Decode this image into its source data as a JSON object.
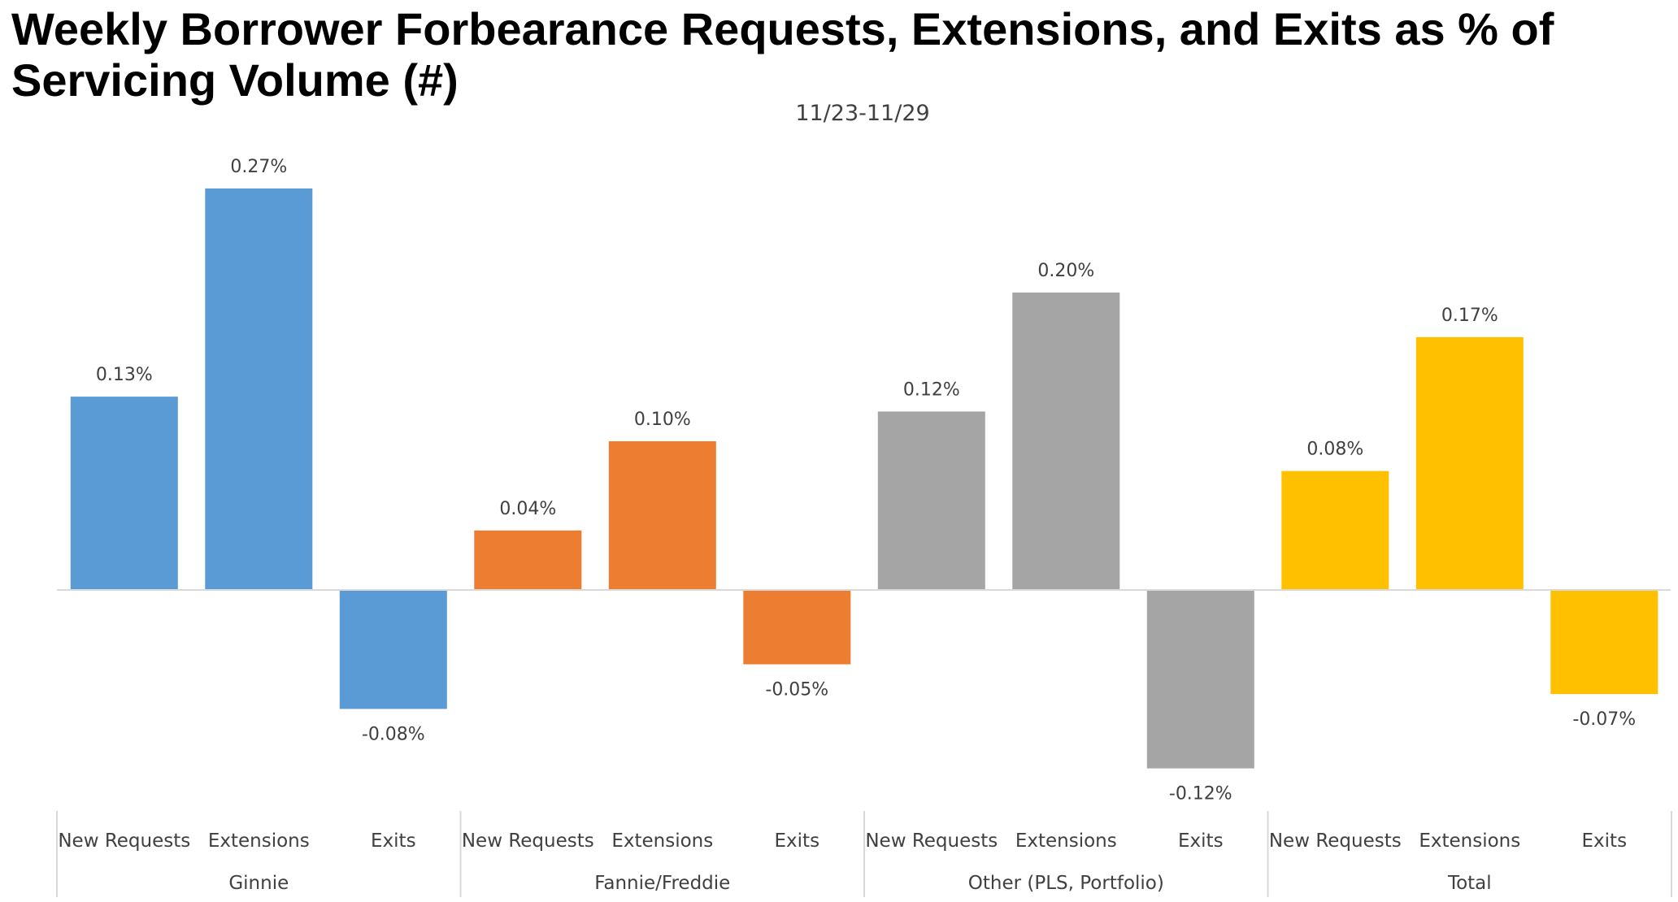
{
  "title": "Weekly Borrower Forbearance Requests, Extensions, and Exits as % of Servicing Volume (#)",
  "chart_data": {
    "type": "bar",
    "subtitle": "11/23-11/29",
    "title": "",
    "xlabel": "",
    "ylabel": "",
    "ylim": [
      -0.15,
      0.3
    ],
    "grid": false,
    "legend": "none",
    "categories": [
      "New Requests",
      "Extensions",
      "Exits",
      "New Requests",
      "Extensions",
      "Exits",
      "New Requests",
      "Extensions",
      "Exits",
      "New Requests",
      "Extensions",
      "Exits"
    ],
    "groups": [
      {
        "name": "Ginnie",
        "color": "#5b9bd5",
        "values": [
          0.13,
          0.27,
          -0.08
        ],
        "labels": [
          "0.13%",
          "0.27%",
          "-0.08%"
        ]
      },
      {
        "name": "Fannie/Freddie",
        "color": "#ed7d31",
        "values": [
          0.04,
          0.1,
          -0.05
        ],
        "labels": [
          "0.04%",
          "0.10%",
          "-0.05%"
        ]
      },
      {
        "name": "Other (PLS, Portfolio)",
        "color": "#a5a5a5",
        "values": [
          0.12,
          0.2,
          -0.12
        ],
        "labels": [
          "0.12%",
          "0.20%",
          "-0.12%"
        ]
      },
      {
        "name": "Total",
        "color": "#ffc000",
        "values": [
          0.08,
          0.17,
          -0.07
        ],
        "labels": [
          "0.08%",
          "0.17%",
          "-0.07%"
        ]
      }
    ],
    "value_unit": "%"
  }
}
